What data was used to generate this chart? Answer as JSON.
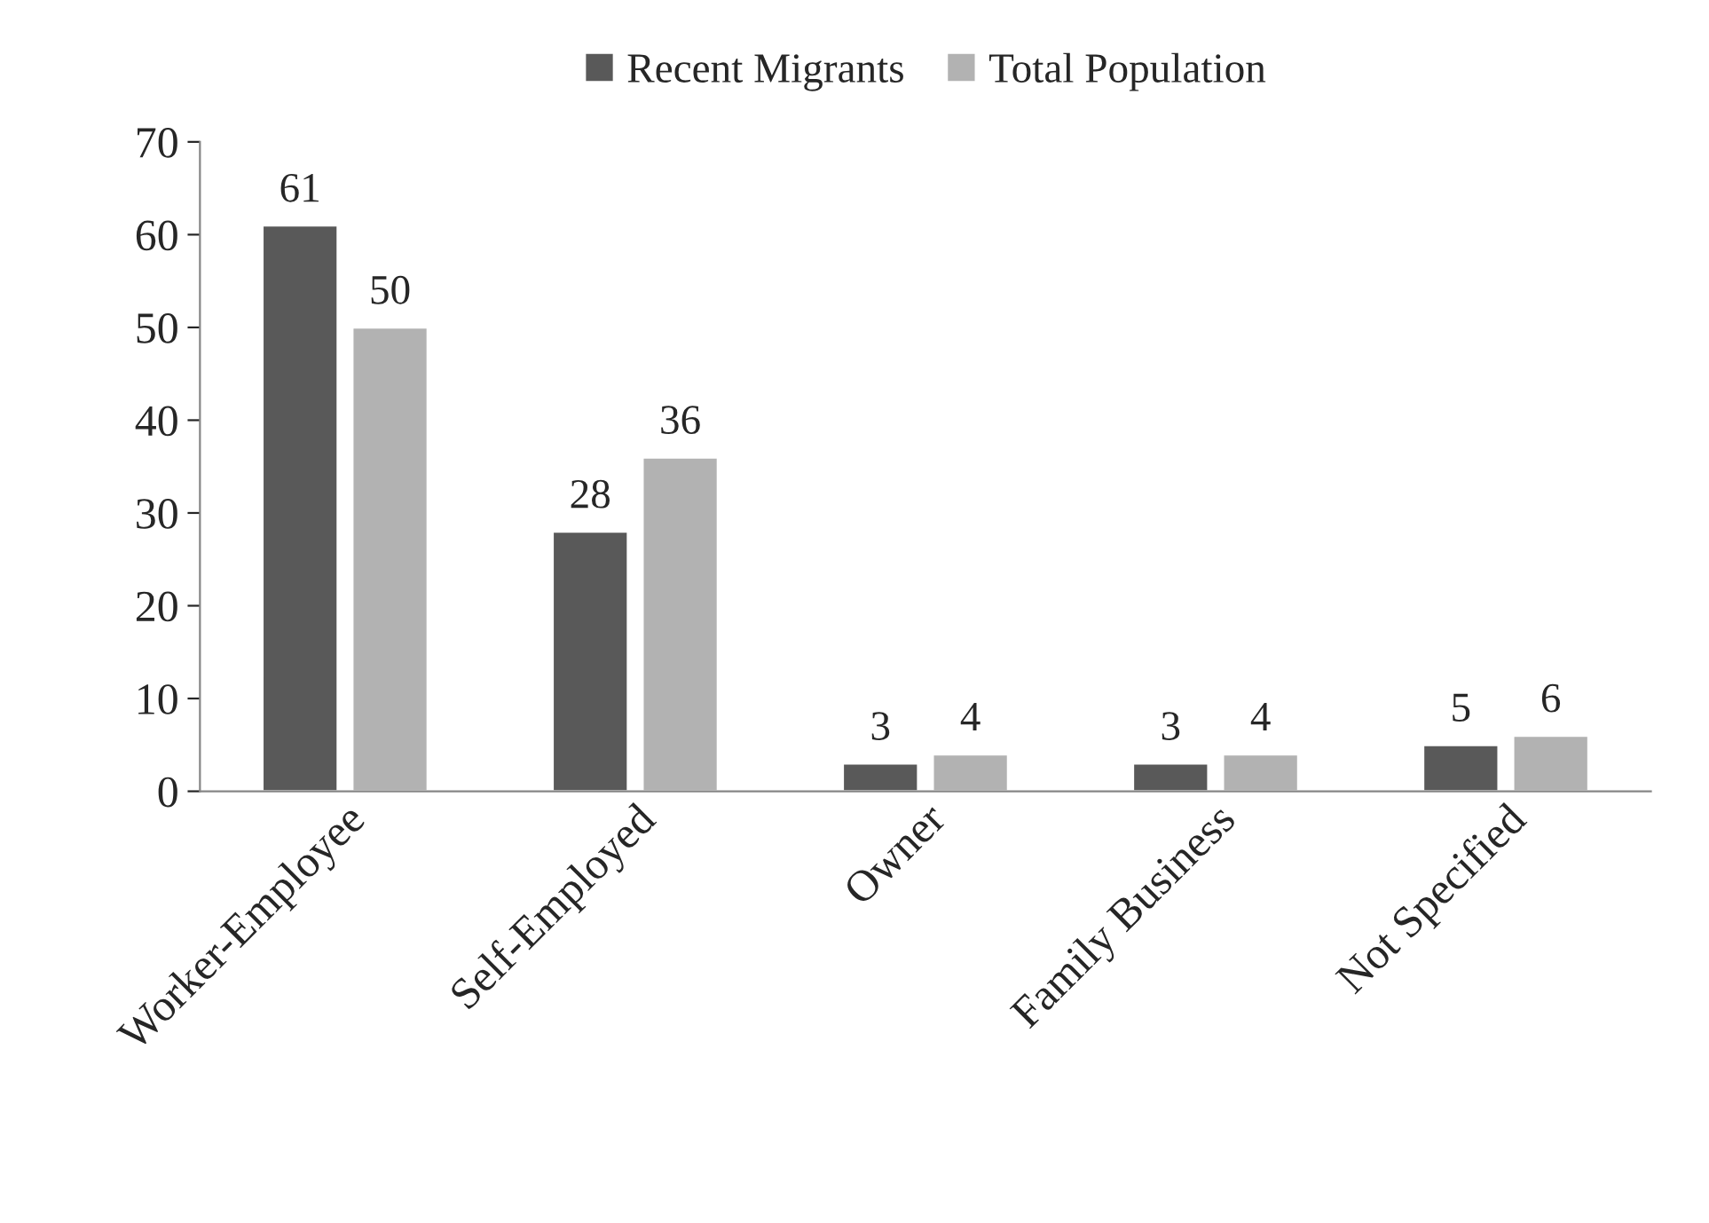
{
  "chart_data": {
    "type": "bar",
    "categories": [
      "Worker-Employee",
      "Self-Employed",
      "Owner",
      "Family Business",
      "Not Specified"
    ],
    "series": [
      {
        "name": "Recent Migrants",
        "color": "#595959",
        "values": [
          61,
          28,
          3,
          3,
          5
        ]
      },
      {
        "name": "Total Population",
        "color": "#b2b2b2",
        "values": [
          50,
          36,
          4,
          4,
          6
        ]
      }
    ],
    "ylim": [
      0,
      70
    ],
    "yticks": [
      0,
      10,
      20,
      30,
      40,
      50,
      60,
      70
    ],
    "data_labels": true,
    "grid": false,
    "legend": "top"
  }
}
